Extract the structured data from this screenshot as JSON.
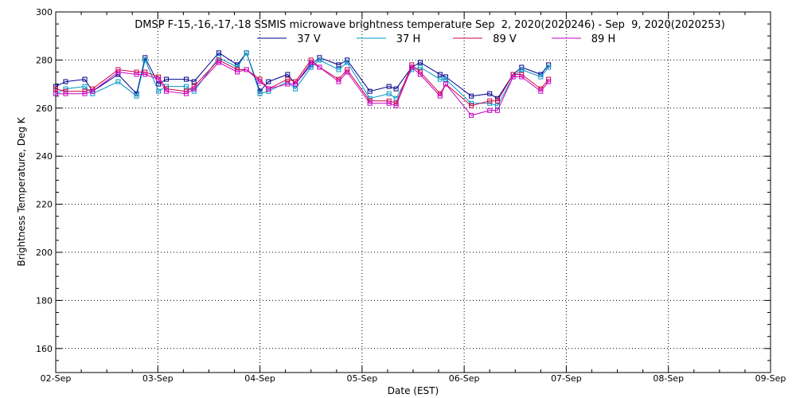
{
  "chart_data": {
    "type": "line",
    "title": "DMSP F-15,-16,-17,-18 SSMIS microwave brightness temperature Sep  2, 2020(2020246) - Sep  9, 2020(2020253)",
    "xlabel": "Date (EST)",
    "ylabel": "Brightness Temperature, Deg K",
    "x_tick_labels": [
      "02-Sep",
      "03-Sep",
      "04-Sep",
      "05-Sep",
      "06-Sep",
      "07-Sep",
      "08-Sep",
      "09-Sep"
    ],
    "xlim": [
      "2020-09-02",
      "2020-09-09"
    ],
    "ylim": [
      150,
      300
    ],
    "y_ticks": [
      160,
      180,
      200,
      220,
      240,
      260,
      280,
      300
    ],
    "grid": true,
    "legend_position": "top-center",
    "x": [
      "2020-09-02 00:00",
      "2020-09-02 02:20",
      "2020-09-02 06:50",
      "2020-09-02 08:40",
      "2020-09-02 14:40",
      "2020-09-02 19:00",
      "2020-09-02 21:00",
      "2020-09-03 00:10",
      "2020-09-03 02:00",
      "2020-09-03 06:40",
      "2020-09-03 08:30",
      "2020-09-03 14:20",
      "2020-09-03 18:40",
      "2020-09-03 20:50",
      "2020-09-04 00:00",
      "2020-09-04 02:00",
      "2020-09-04 06:30",
      "2020-09-04 08:20",
      "2020-09-04 12:00",
      "2020-09-04 14:00",
      "2020-09-04 18:30",
      "2020-09-04 20:30",
      "2020-09-05 01:50",
      "2020-09-05 06:20",
      "2020-09-05 08:00",
      "2020-09-05 11:40",
      "2020-09-05 13:40",
      "2020-09-05 18:20",
      "2020-09-05 19:40",
      "2020-09-06 01:40",
      "2020-09-06 06:00",
      "2020-09-06 07:50",
      "2020-09-06 11:30",
      "2020-09-06 13:30",
      "2020-09-06 18:00",
      "2020-09-06 19:50"
    ],
    "series": [
      {
        "name": "37 V",
        "color": "#00008c",
        "values": [
          269,
          271,
          272,
          267,
          274,
          266,
          281,
          270,
          272,
          272,
          271,
          283,
          278,
          283,
          267,
          271,
          274,
          270,
          278,
          281,
          278,
          280,
          267,
          269,
          268,
          277,
          279,
          274,
          273,
          265,
          266,
          264,
          274,
          277,
          274,
          278
        ]
      },
      {
        "name": "37 H",
        "color": "#0095c8",
        "values": [
          266,
          268,
          269,
          266,
          271,
          265,
          280,
          267,
          269,
          269,
          267,
          281,
          277,
          283,
          266,
          267,
          271,
          268,
          277,
          280,
          276,
          279,
          264,
          266,
          264,
          276,
          277,
          272,
          272,
          262,
          262,
          261,
          273,
          276,
          273,
          277
        ]
      },
      {
        "name": "89 V",
        "color": "#d2003c",
        "values": [
          268,
          267,
          267,
          268,
          276,
          275,
          275,
          273,
          268,
          267,
          269,
          280,
          276,
          276,
          272,
          268,
          272,
          271,
          280,
          277,
          272,
          276,
          263,
          263,
          262,
          278,
          275,
          266,
          270,
          261,
          263,
          263,
          274,
          274,
          268,
          272
        ]
      },
      {
        "name": "89 H",
        "color": "#c800c8",
        "values": [
          266,
          266,
          266,
          267,
          275,
          274,
          274,
          272,
          267,
          266,
          268,
          279,
          275,
          276,
          271,
          268,
          270,
          270,
          279,
          277,
          271,
          275,
          262,
          262,
          261,
          277,
          274,
          265,
          270,
          257,
          259,
          259,
          273,
          273,
          267,
          271
        ]
      }
    ]
  }
}
